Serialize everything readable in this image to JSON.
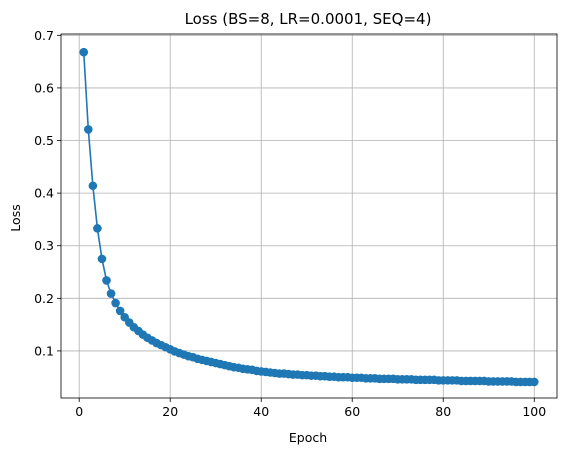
{
  "chart_data": {
    "type": "line",
    "title": "Loss (BS=8, LR=0.0001, SEQ=4)",
    "xlabel": "Epoch",
    "ylabel": "Loss",
    "xlim": [
      -4.0,
      105.0
    ],
    "ylim": [
      0.0105,
      0.7025
    ],
    "xticks": [
      0,
      20,
      40,
      60,
      80,
      100
    ],
    "yticks": [
      0.1,
      0.2,
      0.3,
      0.4,
      0.5,
      0.6,
      0.7
    ],
    "grid": true,
    "series": [
      {
        "color": "#1f77b4",
        "marker": "circle",
        "x": [
          1,
          2,
          3,
          4,
          5,
          6,
          7,
          8,
          9,
          10,
          11,
          12,
          13,
          14,
          15,
          16,
          17,
          18,
          19,
          20,
          21,
          22,
          23,
          24,
          25,
          26,
          27,
          28,
          29,
          30,
          31,
          32,
          33,
          34,
          35,
          36,
          37,
          38,
          39,
          40,
          41,
          42,
          43,
          44,
          45,
          46,
          47,
          48,
          49,
          50,
          51,
          52,
          53,
          54,
          55,
          56,
          57,
          58,
          59,
          60,
          61,
          62,
          63,
          64,
          65,
          66,
          67,
          68,
          69,
          70,
          71,
          72,
          73,
          74,
          75,
          76,
          77,
          78,
          79,
          80,
          81,
          82,
          83,
          84,
          85,
          86,
          87,
          88,
          89,
          90,
          91,
          92,
          93,
          94,
          95,
          96,
          97,
          98,
          99,
          100
        ],
        "y": [
          0.668,
          0.521,
          0.414,
          0.333,
          0.275,
          0.234,
          0.209,
          0.191,
          0.176,
          0.164,
          0.154,
          0.145,
          0.138,
          0.131,
          0.125,
          0.12,
          0.115,
          0.111,
          0.107,
          0.103,
          0.099,
          0.096,
          0.093,
          0.09,
          0.088,
          0.085,
          0.083,
          0.081,
          0.079,
          0.077,
          0.075,
          0.073,
          0.071,
          0.069,
          0.068,
          0.066,
          0.065,
          0.064,
          0.062,
          0.061,
          0.06,
          0.059,
          0.058,
          0.057,
          0.057,
          0.056,
          0.055,
          0.055,
          0.054,
          0.054,
          0.053,
          0.053,
          0.052,
          0.052,
          0.051,
          0.051,
          0.05,
          0.05,
          0.05,
          0.049,
          0.049,
          0.049,
          0.048,
          0.048,
          0.048,
          0.047,
          0.047,
          0.047,
          0.047,
          0.046,
          0.046,
          0.046,
          0.046,
          0.045,
          0.045,
          0.045,
          0.045,
          0.045,
          0.044,
          0.044,
          0.044,
          0.044,
          0.044,
          0.043,
          0.043,
          0.043,
          0.043,
          0.043,
          0.043,
          0.042,
          0.042,
          0.042,
          0.042,
          0.042,
          0.042,
          0.041,
          0.041,
          0.041,
          0.041,
          0.041
        ]
      }
    ]
  }
}
